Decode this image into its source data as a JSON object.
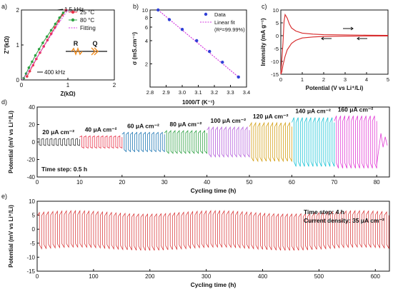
{
  "chart_data": [
    {
      "panel": "a)",
      "type": "scatter",
      "xlabel": "Z(kΩ)",
      "ylabel": "Z''(kΩ)",
      "xlim": [
        0,
        2
      ],
      "ylim": [
        0,
        2
      ],
      "x_ticks": [
        "0",
        "1",
        "2"
      ],
      "y_ticks": [
        "0",
        "1",
        "2"
      ],
      "legend": [
        "25 °C",
        "80 °C",
        "Fitting"
      ],
      "legend_placement": "top-right",
      "annotations": [
        "1.5 kHz",
        "400 kHz"
      ],
      "circuit_labels": [
        "R",
        "Q"
      ],
      "series": [
        {
          "name": "25 °C",
          "color": "#e8334a",
          "x": [
            0.12,
            0.18,
            0.25,
            0.32,
            0.4,
            0.48,
            0.56,
            0.64,
            0.72,
            0.8,
            0.88,
            0.96
          ],
          "y": [
            0.1,
            0.25,
            0.42,
            0.6,
            0.78,
            0.96,
            1.14,
            1.32,
            1.5,
            1.68,
            1.86,
            2.0
          ]
        },
        {
          "name": "80 °C",
          "color": "#2ea043",
          "x": [
            0.05,
            0.1,
            0.16,
            0.23,
            0.3,
            0.38,
            0.46,
            0.55,
            0.64,
            0.73,
            0.82,
            0.9
          ],
          "y": [
            0.05,
            0.18,
            0.35,
            0.52,
            0.7,
            0.88,
            1.06,
            1.24,
            1.42,
            1.6,
            1.78,
            1.92
          ]
        },
        {
          "name": "Fitting",
          "color": "#d43adf",
          "x": [
            0.02,
            0.2,
            0.4,
            0.6,
            0.8,
            1.0
          ],
          "y": [
            0.0,
            0.35,
            0.78,
            1.2,
            1.62,
            2.0
          ]
        }
      ]
    },
    {
      "panel": "b)",
      "type": "scatter",
      "xlabel": "1000/T (K⁻¹)",
      "ylabel": "σ (mS.cm⁻¹)",
      "xlim": [
        2.8,
        3.4
      ],
      "y_scale": "log",
      "ylim": [
        1,
        10
      ],
      "x_ticks": [
        "2.8",
        "2.9",
        "3.0",
        "3.1",
        "3.2",
        "3.3",
        "3.4"
      ],
      "y_ticks": [
        "2",
        "4",
        "6",
        "8",
        "10"
      ],
      "legend": [
        "Data",
        "Linear fit",
        "(R²=99.99%)"
      ],
      "legend_placement": "top-right",
      "series": [
        {
          "name": "Data",
          "color": "#2f3fd6",
          "x": [
            2.85,
            2.92,
            3.0,
            3.09,
            3.17,
            3.25,
            3.35
          ],
          "y": [
            10.0,
            7.5,
            5.6,
            4.0,
            2.9,
            2.1,
            1.35
          ]
        },
        {
          "name": "Linear fit",
          "color": "#d43adf",
          "x": [
            2.85,
            3.35
          ],
          "y": [
            10.0,
            1.35
          ]
        }
      ]
    },
    {
      "panel": "c)",
      "type": "line",
      "xlabel": "Potential (V vs Li⁺/Li)",
      "ylabel": "Intensity (mA g⁻¹)",
      "xlim": [
        0,
        5
      ],
      "ylim": [
        -15,
        10
      ],
      "x_ticks": [
        "0",
        "1",
        "2",
        "3",
        "4",
        "5"
      ],
      "y_ticks": [
        "-15",
        "-10",
        "-5",
        "0",
        "5",
        "10"
      ],
      "series": [
        {
          "name": "",
          "color": "#d62728",
          "x": [
            0.0,
            0.05,
            0.1,
            0.15,
            0.2,
            0.3,
            0.4,
            0.5,
            0.7,
            1.0,
            1.5,
            2.0,
            3.0,
            4.0,
            5.0
          ],
          "y": [
            -15,
            -9,
            -3,
            5.5,
            8.2,
            6.8,
            4.5,
            3.0,
            1.8,
            1.0,
            0.6,
            0.4,
            0.3,
            0.2,
            0.15
          ]
        },
        {
          "name": "",
          "color": "#d62728",
          "x": [
            5.0,
            4.0,
            3.0,
            2.0,
            1.5,
            1.0,
            0.7,
            0.5,
            0.3,
            0.2,
            0.1,
            0.05,
            0.0
          ],
          "y": [
            -0.1,
            -0.1,
            -0.2,
            -0.3,
            -0.5,
            -0.9,
            -1.8,
            -3.0,
            -5.5,
            -8.0,
            -11.5,
            -14.0,
            -15.0
          ]
        }
      ]
    },
    {
      "panel": "d)",
      "type": "line",
      "xlabel": "Cycling time (h)",
      "ylabel": "Potential (mV vs Li⁺/Li)",
      "xlim": [
        0,
        83
      ],
      "ylim": [
        -40,
        40
      ],
      "x_ticks": [
        "0",
        "10",
        "20",
        "30",
        "40",
        "50",
        "60",
        "70",
        "80"
      ],
      "y_ticks": [
        "-40",
        "-20",
        "0",
        "20",
        "40"
      ],
      "annotation": "Time step: 0.5 h",
      "segments": [
        {
          "label": "20 μA cm⁻²",
          "color": "#3a3a3a",
          "start": 0,
          "end": 10,
          "amplitude": 4
        },
        {
          "label": "40 μA cm⁻²",
          "color": "#e8334a",
          "start": 10,
          "end": 20,
          "amplitude": 7
        },
        {
          "label": "60 μA cm⁻²",
          "color": "#1f77b4",
          "start": 20,
          "end": 30,
          "amplitude": 11
        },
        {
          "label": "80 μA cm⁻²",
          "color": "#2ea043",
          "start": 30,
          "end": 40,
          "amplitude": 13
        },
        {
          "label": "100 μA cm⁻²",
          "color": "#b45cdb",
          "start": 40,
          "end": 50,
          "amplitude": 17
        },
        {
          "label": "120 μA cm⁻²",
          "color": "#d4a017",
          "start": 50,
          "end": 60,
          "amplitude": 22
        },
        {
          "label": "140 μA cm⁻²",
          "color": "#17c3d6",
          "start": 60,
          "end": 70,
          "amplitude": 28
        },
        {
          "label": "160 μA cm⁻²",
          "color": "#e23bd6",
          "start": 70,
          "end": 80,
          "amplitude": 30
        }
      ]
    },
    {
      "panel": "e)",
      "type": "line",
      "xlabel": "Cycling time (h)",
      "ylabel": "Potential (mV vs Li⁺/Li)",
      "xlim": [
        0,
        625
      ],
      "ylim": [
        -15,
        10
      ],
      "x_ticks": [
        "0",
        "100",
        "200",
        "300",
        "400",
        "500",
        "600"
      ],
      "y_ticks": [
        "-15",
        "-10",
        "-5",
        "0",
        "5",
        "10"
      ],
      "annotations": [
        "Time step: 4 h",
        "Current density: 35 μA cm⁻²"
      ],
      "series": [
        {
          "name": "",
          "color": "#d62728",
          "period_h": 8,
          "amplitude": [
            6,
            7
          ]
        }
      ]
    }
  ]
}
